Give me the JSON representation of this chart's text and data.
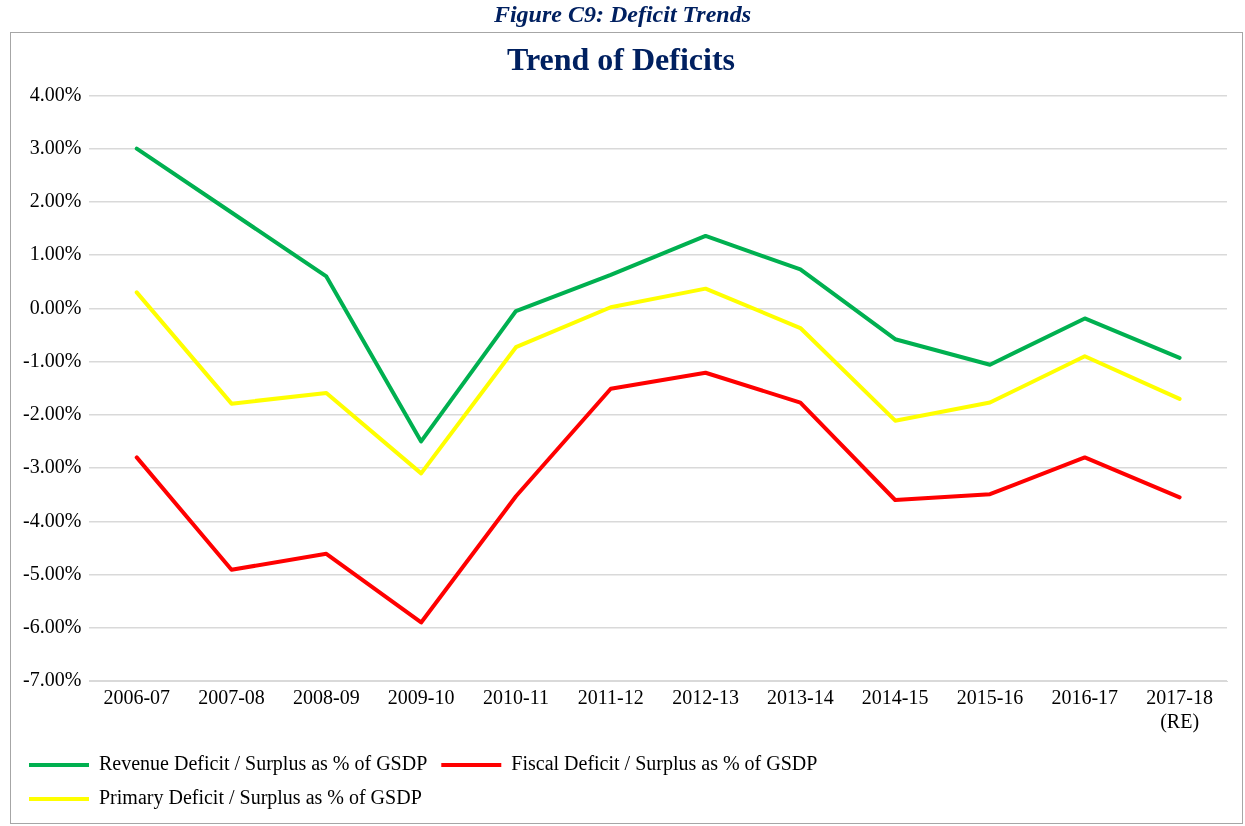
{
  "chart_data": {
    "type": "line",
    "title": "Trend of Deficits",
    "annotations": [
      "Figure C9: Deficit Trends"
    ],
    "categories": [
      "2006-07",
      "2007-08",
      "2008-09",
      "2009-10",
      "2010-11",
      "2011-12",
      "2012-13",
      "2013-14",
      "2014-15",
      "2015-16",
      "2016-17",
      "2017-18 (RE)"
    ],
    "series": [
      {
        "name": "Revenue Deficit / Surplus as % of GSDP",
        "color": "#00b050",
        "values": [
          3.0,
          1.8,
          0.6,
          -2.5,
          -0.05,
          0.63,
          1.36,
          0.73,
          -0.58,
          -1.06,
          -0.19,
          -0.93
        ]
      },
      {
        "name": "Fiscal Deficit / Surplus as % of GSDP",
        "color": "#ff0000",
        "values": [
          -2.8,
          -4.91,
          -4.61,
          -5.9,
          -3.53,
          -1.51,
          -1.21,
          -1.77,
          -3.6,
          -3.49,
          -2.8,
          -3.55
        ]
      },
      {
        "name": "Primary Deficit / Surplus as % of GSDP",
        "color": "#ffff00",
        "values": [
          0.3,
          -1.79,
          -1.59,
          -3.1,
          -0.73,
          0.02,
          0.37,
          -0.37,
          -2.11,
          -1.77,
          -0.9,
          -1.7
        ]
      }
    ],
    "ylim": [
      -7,
      4
    ],
    "yticks": [
      {
        "value": -7,
        "label": "-7.00%"
      },
      {
        "value": -6,
        "label": "-6.00%"
      },
      {
        "value": -5,
        "label": "-5.00%"
      },
      {
        "value": -4,
        "label": "-4.00%"
      },
      {
        "value": -3,
        "label": "-3.00%"
      },
      {
        "value": -2,
        "label": "-2.00%"
      },
      {
        "value": -1,
        "label": "-1.00%"
      },
      {
        "value": 0,
        "label": "0.00%"
      },
      {
        "value": 1,
        "label": "1.00%"
      },
      {
        "value": 2,
        "label": "2.00%"
      },
      {
        "value": 3,
        "label": "3.00%"
      },
      {
        "value": 4,
        "label": "4.00%"
      }
    ],
    "grid": "y",
    "legend": "bottom",
    "marker": "none",
    "line_style": "solid"
  }
}
